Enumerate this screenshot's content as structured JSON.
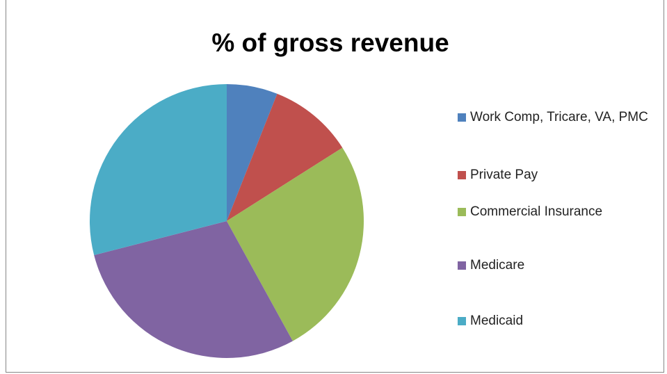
{
  "chart_data": {
    "type": "pie",
    "title": "% of gross revenue",
    "categories": [
      "Work Comp, Tricare, VA, PMC",
      "Private Pay",
      "Commercial Insurance",
      "Medicare",
      "Medicaid"
    ],
    "values": [
      6,
      10,
      26,
      29,
      29
    ],
    "colors": [
      "#4f81bd",
      "#c0504d",
      "#9bbb59",
      "#8064a2",
      "#4bacc6"
    ],
    "legend": "right"
  }
}
